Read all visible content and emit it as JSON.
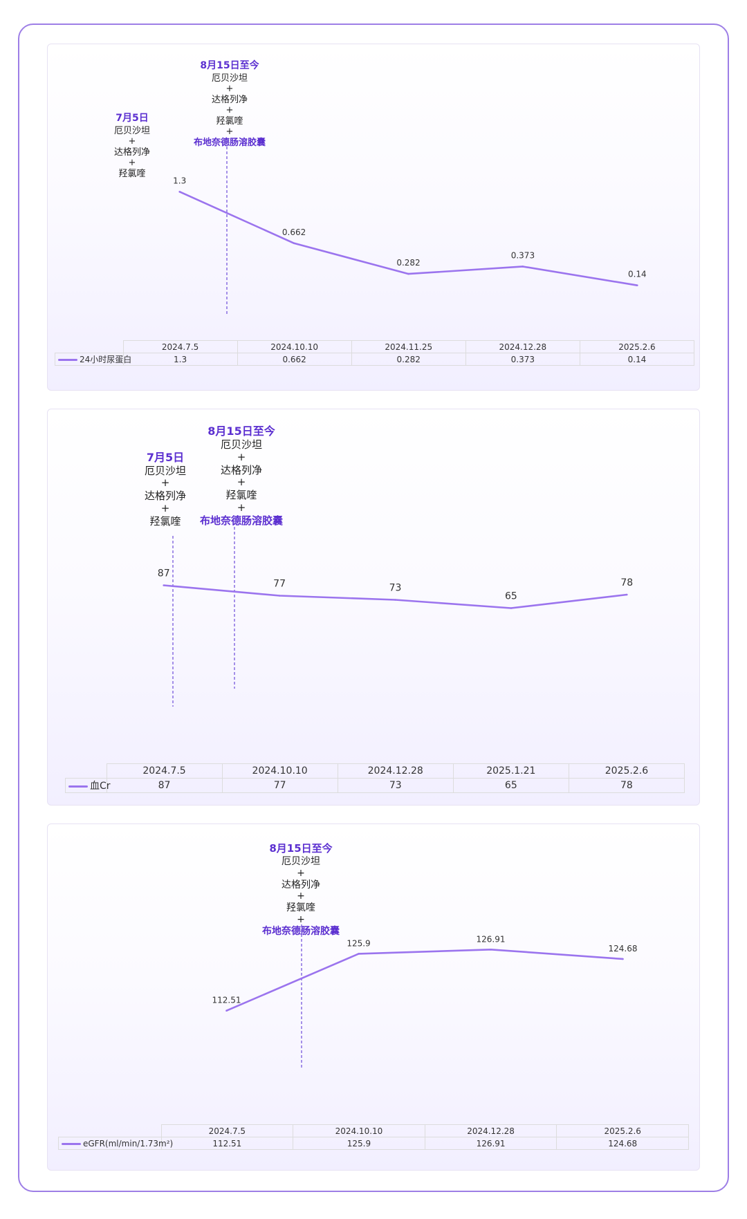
{
  "colors": {
    "series": "#9b74ee",
    "annotation": "#5b2fd0",
    "border": "#9d7ee6"
  },
  "annotations": {
    "early": {
      "title": "7月5日",
      "lines": [
        "厄贝沙坦",
        "+",
        "达格列净",
        "+",
        "羟氯喹"
      ]
    },
    "late": {
      "title": "8月15日至今",
      "lines": [
        "厄贝沙坦",
        "+",
        "达格列净",
        "+",
        "羟氯喹",
        "+"
      ],
      "highlight": "布地奈德肠溶胶囊"
    }
  },
  "chart_data": [
    {
      "type": "line",
      "categories": [
        "2024.7.5",
        "2024.10.10",
        "2024.11.25",
        "2024.12.28",
        "2025.2.6"
      ],
      "series": [
        {
          "name": "24小时尿蛋白",
          "values": [
            "1.3",
            "0.662",
            "0.282",
            "0.373",
            "0.14"
          ]
        }
      ],
      "ylim": [
        0,
        1.5
      ],
      "legend": "table-bottom",
      "grid": false
    },
    {
      "type": "line",
      "categories": [
        "2024.7.5",
        "2024.10.10",
        "2024.12.28",
        "2025.1.21",
        "2025.2.6"
      ],
      "series": [
        {
          "name": "血Cr",
          "values": [
            "87",
            "77",
            "73",
            "65",
            "78"
          ]
        }
      ],
      "ylim": [
        0,
        150
      ],
      "legend": "table-bottom",
      "grid": false
    },
    {
      "type": "line",
      "categories": [
        "2024.7.5",
        "2024.10.10",
        "2024.12.28",
        "2025.2.6"
      ],
      "series": [
        {
          "name": "eGFR(ml/min/1.73m²)",
          "values": [
            "112.51",
            "125.9",
            "126.91",
            "124.68"
          ]
        }
      ],
      "ylim": [
        104,
        132
      ],
      "legend": "table-bottom",
      "grid": false
    }
  ]
}
